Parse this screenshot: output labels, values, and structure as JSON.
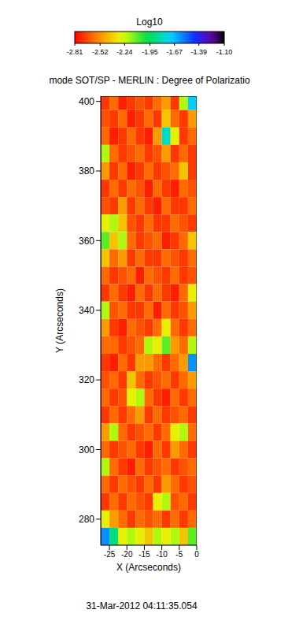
{
  "chart_data": {
    "type": "heatmap",
    "title": "mode SOT/SP - MERLIN : Degree of Polarizatio",
    "annotation": "31-Mar-2012 04:11:35.054",
    "x_label": "X (Arcseconds)",
    "y_label": "Y (Arcseconds)",
    "xlim": [
      -27.5,
      0
    ],
    "xticks": [
      -25,
      -20,
      -15,
      -10,
      -5,
      0
    ],
    "ylim": [
      272.5,
      401.5
    ],
    "yticks": [
      280,
      300,
      320,
      340,
      360,
      380,
      400
    ],
    "cells": {
      "x": [
        -26.25,
        -23.75,
        -21.25,
        -18.75,
        -16.25,
        -13.75,
        -11.25,
        -8.75,
        -6.25,
        -3.75,
        -1.25
      ],
      "y": [
        400,
        395,
        390,
        385,
        380,
        375,
        370,
        365,
        360,
        355,
        350,
        345,
        340,
        335,
        330,
        325,
        320,
        315,
        310,
        305,
        300,
        295,
        290,
        285,
        280,
        275
      ],
      "values": [
        [
          -2.7,
          -2.6,
          -2.75,
          -2.7,
          -2.65,
          -2.7,
          -2.6,
          -2.5,
          -2.7,
          -2.2,
          -1.7
        ],
        [
          -2.65,
          -2.7,
          -2.6,
          -2.75,
          -2.7,
          -2.6,
          -2.7,
          -2.4,
          -2.6,
          -2.7,
          -2.5
        ],
        [
          -2.6,
          -2.75,
          -2.7,
          -2.6,
          -2.7,
          -2.75,
          -2.5,
          -1.8,
          -2.3,
          -2.7,
          -2.6
        ],
        [
          -2.2,
          -2.6,
          -2.7,
          -2.65,
          -2.6,
          -2.7,
          -2.65,
          -2.5,
          -2.7,
          -2.6,
          -2.7
        ],
        [
          -2.5,
          -2.7,
          -2.6,
          -2.75,
          -2.7,
          -2.6,
          -2.7,
          -2.65,
          -2.6,
          -2.4,
          -2.7
        ],
        [
          -2.7,
          -2.6,
          -2.7,
          -2.6,
          -2.65,
          -2.75,
          -2.6,
          -2.7,
          -2.75,
          -2.6,
          -2.65
        ],
        [
          -2.65,
          -2.7,
          -2.5,
          -2.7,
          -2.6,
          -2.7,
          -2.75,
          -2.6,
          -2.7,
          -2.7,
          -2.6
        ],
        [
          -2.3,
          -2.2,
          -2.4,
          -2.65,
          -2.7,
          -2.6,
          -2.7,
          -2.7,
          -2.6,
          -2.65,
          -2.7
        ],
        [
          -2.1,
          -2.4,
          -2.2,
          -2.6,
          -2.7,
          -2.65,
          -2.6,
          -2.75,
          -2.7,
          -2.6,
          -2.4
        ],
        [
          -2.4,
          -2.6,
          -2.5,
          -2.7,
          -2.6,
          -2.7,
          -2.7,
          -2.6,
          -2.65,
          -2.7,
          -2.6
        ],
        [
          -2.6,
          -2.7,
          -2.65,
          -2.6,
          -2.75,
          -2.6,
          -2.65,
          -2.7,
          -2.6,
          -2.7,
          -2.65
        ],
        [
          -2.7,
          -2.6,
          -2.7,
          -2.75,
          -2.6,
          -2.7,
          -2.6,
          -2.7,
          -2.75,
          -2.6,
          -2.3
        ],
        [
          -2.2,
          -2.65,
          -2.6,
          -2.7,
          -2.7,
          -2.6,
          -2.75,
          -2.6,
          -2.7,
          -2.65,
          -2.5
        ],
        [
          -2.5,
          -2.7,
          -2.75,
          -2.6,
          -2.65,
          -2.7,
          -2.6,
          -2.3,
          -2.6,
          -2.7,
          -2.6
        ],
        [
          -2.6,
          -2.6,
          -2.7,
          -2.65,
          -2.6,
          -2.2,
          -2.3,
          -2.1,
          -2.5,
          -2.6,
          -2.2
        ],
        [
          -2.7,
          -2.75,
          -2.6,
          -2.7,
          -2.5,
          -2.5,
          -2.6,
          -2.7,
          -2.6,
          -2.5,
          -1.6
        ],
        [
          -2.65,
          -2.6,
          -2.7,
          -2.4,
          -2.6,
          -2.7,
          -2.65,
          -2.6,
          -2.7,
          -2.6,
          -2.5
        ],
        [
          -2.6,
          -2.7,
          -2.65,
          -2.3,
          -2.2,
          -2.6,
          -2.7,
          -2.75,
          -2.6,
          -2.7,
          -2.6
        ],
        [
          -2.7,
          -2.6,
          -2.7,
          -2.6,
          -2.5,
          -2.7,
          -2.6,
          -2.7,
          -2.65,
          -2.6,
          -2.7
        ],
        [
          -2.5,
          -2.2,
          -2.6,
          -2.7,
          -2.65,
          -2.6,
          -2.7,
          -2.6,
          -2.3,
          -2.2,
          -2.6
        ],
        [
          -2.6,
          -2.7,
          -2.65,
          -2.6,
          -2.7,
          -2.75,
          -2.6,
          -2.7,
          -2.5,
          -2.6,
          -2.7
        ],
        [
          -2.2,
          -2.6,
          -2.7,
          -2.75,
          -2.6,
          -2.7,
          -2.65,
          -2.6,
          -2.7,
          -2.65,
          -2.6
        ],
        [
          -2.6,
          -2.7,
          -2.6,
          -2.65,
          -2.7,
          -2.6,
          -2.7,
          -2.5,
          -2.6,
          -2.7,
          -2.65
        ],
        [
          -2.7,
          -2.6,
          -2.7,
          -2.6,
          -2.65,
          -2.7,
          -2.3,
          -2.2,
          -2.65,
          -2.6,
          -2.7
        ],
        [
          -2.3,
          -2.5,
          -2.6,
          -2.7,
          -2.6,
          -2.65,
          -2.6,
          -2.7,
          -2.6,
          -2.7,
          -2.6
        ],
        [
          -1.6,
          -1.9,
          -2.3,
          -2.2,
          -2.3,
          -2.4,
          -2.2,
          -2.3,
          -2.2,
          -2.4,
          -2.1
        ]
      ]
    },
    "colorbar": {
      "label": "Log10",
      "range": [
        -2.81,
        {
          "value": -1.1,
          "label": "-1.10"
        }
      ],
      "ticks": [
        -2.81,
        -2.52,
        -2.24,
        -1.95,
        -1.67,
        -1.39,
        {
          "value": -1.1,
          "label": "-1.10"
        }
      ]
    }
  }
}
